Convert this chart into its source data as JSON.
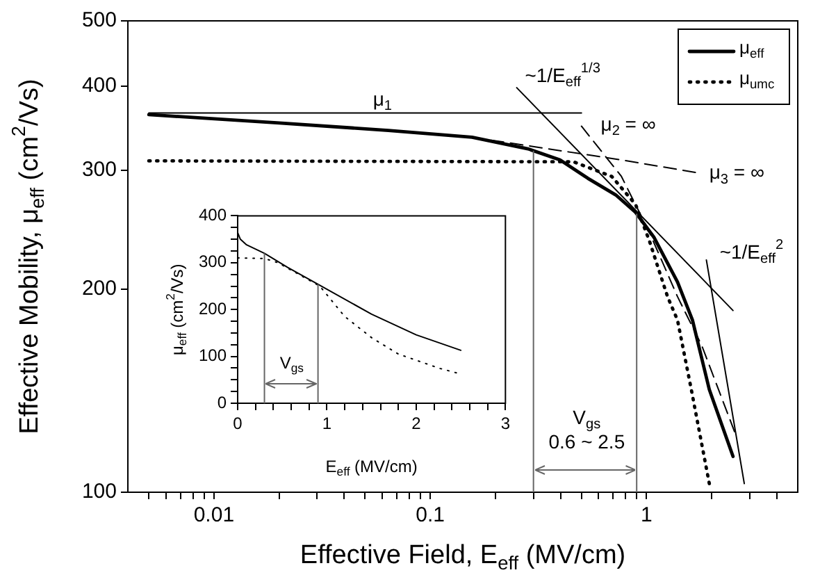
{
  "chart_data": [
    {
      "type": "line",
      "xlabel": "Effective Field, E$_{eff}$ (MV/cm)",
      "ylabel": "Effective Mobility, μ$_{eff}$ (cm$^{2}$/Vs)",
      "log": "xy",
      "legend": "top right",
      "xlim": [
        0.004,
        5
      ],
      "ylim": [
        100,
        500
      ],
      "xticks": [
        {
          "value": 0.005,
          "label": null
        },
        {
          "value": 0.006,
          "label": null
        },
        {
          "value": 0.007,
          "label": null
        },
        {
          "value": 0.008,
          "label": null
        },
        {
          "value": 0.009,
          "label": null
        },
        0.01,
        {
          "value": 0.02,
          "label": null
        },
        {
          "value": 0.03,
          "label": null
        },
        {
          "value": 0.04,
          "label": null
        },
        {
          "value": 0.05,
          "label": null
        },
        {
          "value": 0.06,
          "label": null
        },
        {
          "value": 0.07,
          "label": null
        },
        {
          "value": 0.08,
          "label": null
        },
        {
          "value": 0.09,
          "label": null
        },
        0.1,
        {
          "value": 0.2,
          "label": null
        },
        {
          "value": 0.3,
          "label": null
        },
        {
          "value": 0.4,
          "label": null
        },
        {
          "value": 0.5,
          "label": null
        },
        {
          "value": 0.6,
          "label": null
        },
        {
          "value": 0.7,
          "label": null
        },
        {
          "value": 0.8,
          "label": null
        },
        {
          "value": 0.9,
          "label": null
        },
        1,
        {
          "value": 2,
          "label": null
        },
        {
          "value": 3,
          "label": null
        },
        {
          "value": 4,
          "label": null
        }
      ],
      "yticks": [
        100,
        200,
        300,
        400,
        500
      ],
      "series": [
        {
          "name": "μ$_{eff}$",
          "color": "#000000",
          "line_style": "solid",
          "x": [
            0.005,
            0.0195,
            0.064,
            0.156,
            0.283,
            0.398,
            0.536,
            0.72,
            0.89,
            1.08,
            1.39,
            1.63,
            1.95,
            2.51
          ],
          "values": [
            363,
            353,
            344,
            336,
            323,
            311,
            292,
            276,
            260,
            239,
            205,
            180,
            142,
            113
          ]
        },
        {
          "name": "μ$_{umc}$",
          "color": "#000000",
          "line_style": "dotted",
          "x": [
            0.005,
            0.46,
            0.69,
            0.89,
            1.03,
            1.25,
            1.39,
            1.61,
            1.95
          ],
          "values": [
            310,
            309,
            294,
            267,
            236,
            195,
            180,
            142,
            103
          ]
        },
        {
          "color": "#000000",
          "line_style": "solid",
          "x": [
            0.005,
            0.5
          ],
          "values": [
            365,
            365
          ]
        },
        {
          "color": "#000000",
          "line_style": "solid",
          "x": [
            0.251,
            2.51
          ],
          "values": [
            398,
            186
          ]
        },
        {
          "color": "#000000",
          "line_style": "dashed",
          "x": [
            0.5,
            0.765,
            1.03,
            1.39,
            1.8,
            2.55
          ],
          "values": [
            349,
            294,
            243,
            195,
            165,
            123
          ]
        },
        {
          "color": "#000000",
          "line_style": "dashed",
          "x": [
            0.156,
            0.765,
            1.68
          ],
          "values": [
            336,
            311,
            298
          ]
        },
        {
          "color": "#000000",
          "line_style": "solid",
          "x": [
            1.89,
            2.83
          ],
          "values": [
            221,
            103
          ]
        }
      ],
      "annotations": [
        "μ$_{1}$",
        "~1/E$_{eff}$$^{1/3}$",
        "μ$_{2}$ = ∞",
        "μ$_{3}$ = ∞",
        "~1/E$_{eff}$$^{2}$",
        "V$_{gs}$\n0.6 ~ 2.5"
      ],
      "ref_lines": [
        {
          "axis": "x",
          "value": 0.3,
          "color": "#666666"
        },
        {
          "axis": "x",
          "value": 0.9,
          "color": "#666666"
        }
      ]
    },
    {
      "type": "line",
      "xlabel": "E$_{eff}$ (MV/cm)",
      "ylabel": "μ$_{eff}$ (cm$^{2}$/Vs)",
      "xlim": [
        0,
        3
      ],
      "ylim": [
        0,
        400
      ],
      "xticks": [
        0,
        {
          "value": 0.2,
          "label": null
        },
        {
          "value": 0.4,
          "label": null
        },
        {
          "value": 0.6,
          "label": null
        },
        {
          "value": 0.8,
          "label": null
        },
        1,
        {
          "value": 1.2,
          "label": null
        },
        {
          "value": 1.4,
          "label": null
        },
        {
          "value": 1.6,
          "label": null
        },
        {
          "value": 1.8,
          "label": null
        },
        2,
        {
          "value": 2.2,
          "label": null
        },
        {
          "value": 2.4,
          "label": null
        },
        {
          "value": 2.6,
          "label": null
        },
        {
          "value": 2.8,
          "label": null
        },
        3
      ],
      "yticks": [
        0,
        {
          "value": 25,
          "label": null
        },
        {
          "value": 50,
          "label": null
        },
        {
          "value": 75,
          "label": null
        },
        100,
        {
          "value": 125,
          "label": null
        },
        {
          "value": 150,
          "label": null
        },
        {
          "value": 175,
          "label": null
        },
        200,
        {
          "value": 225,
          "label": null
        },
        {
          "value": 250,
          "label": null
        },
        {
          "value": 275,
          "label": null
        },
        300,
        {
          "value": 325,
          "label": null
        },
        {
          "value": 350,
          "label": null
        },
        {
          "value": 375,
          "label": null
        },
        400
      ],
      "series": [
        {
          "color": "#000000",
          "line_style": "solid",
          "x": [
            0,
            0.03,
            0.1,
            0.3,
            0.56,
            0.9,
            1.5,
            2,
            2.5
          ],
          "values": [
            364,
            350,
            338,
            320,
            290,
            254,
            190,
            146,
            113
          ]
        },
        {
          "color": "#000000",
          "line_style": "dotted",
          "x": [
            0,
            0.3,
            0.45,
            0.92,
            1.2,
            1.5,
            1.8,
            2.27,
            2.45
          ],
          "values": [
            310,
            309,
            300,
            250,
            185,
            140,
            105,
            74,
            65
          ]
        }
      ],
      "annotations": [
        "V$_{gs}$"
      ],
      "ref_lines": [
        {
          "axis": "x",
          "value": 0.3,
          "color": "#666666"
        },
        {
          "axis": "x",
          "value": 0.9,
          "color": "#666666"
        }
      ]
    }
  ]
}
